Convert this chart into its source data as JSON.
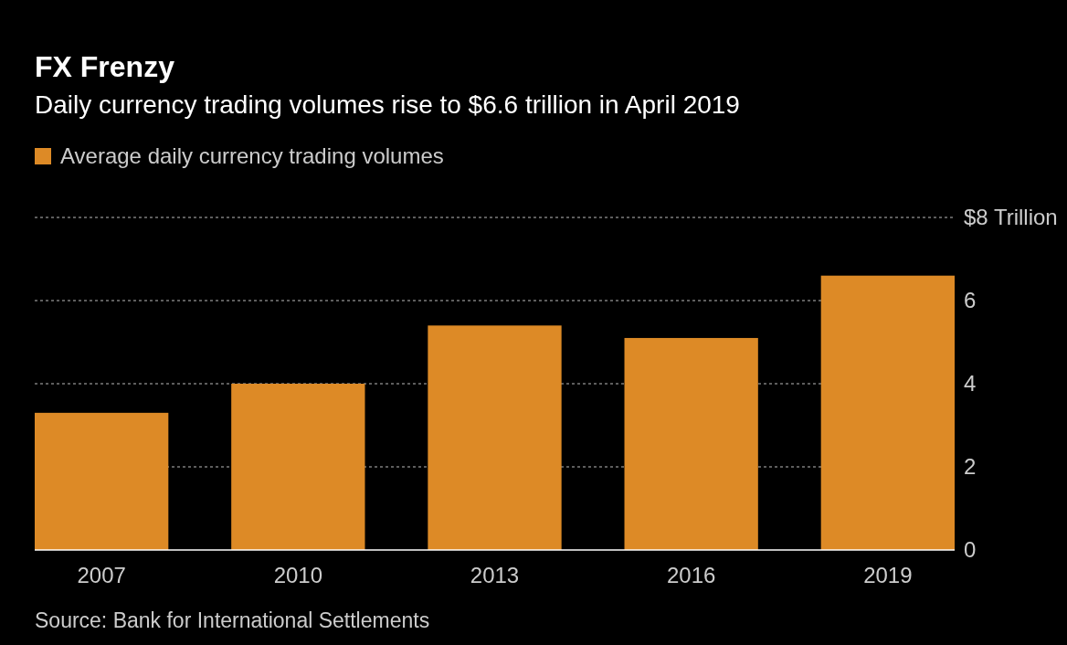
{
  "chart_data": {
    "type": "bar",
    "title": "FX Frenzy",
    "subtitle": "Daily currency trading volumes rise to $6.6 trillion in April 2019",
    "categories": [
      "2007",
      "2010",
      "2013",
      "2016",
      "2019"
    ],
    "series": [
      {
        "name": "Average daily currency trading volumes",
        "color": "#dd8a26",
        "values": [
          3.3,
          4.0,
          5.4,
          5.1,
          6.6
        ]
      }
    ],
    "ylim": [
      0,
      8
    ],
    "yticks": [
      0,
      2,
      4,
      6,
      {
        "value": 8,
        "label": "$8 Trillion"
      }
    ],
    "grid": "y",
    "legend": "top left",
    "annotations": [
      "Source: Bank for International Settlements"
    ]
  }
}
